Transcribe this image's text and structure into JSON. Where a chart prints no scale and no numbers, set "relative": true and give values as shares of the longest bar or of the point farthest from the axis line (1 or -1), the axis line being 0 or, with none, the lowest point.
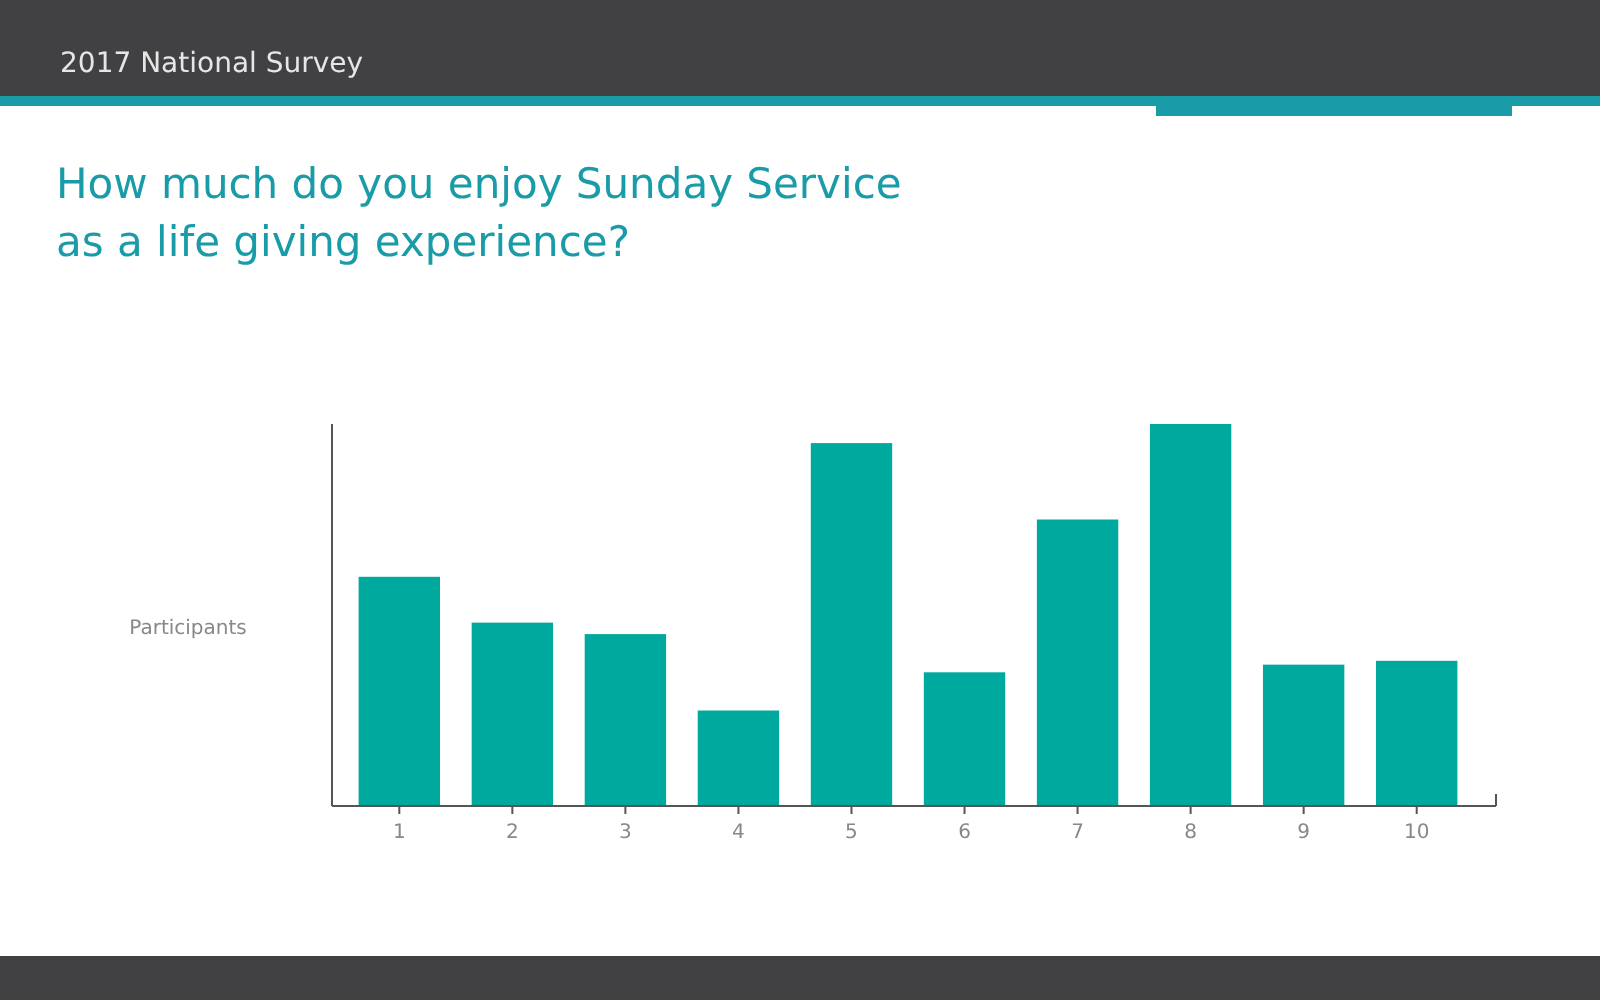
{
  "chart_data": {
    "type": "bar",
    "title": "2017 National Survey",
    "subtitle": "How much do you enjoy Sunday Service\nas a life giving experience?",
    "ylabel": "Participants",
    "relative": true,
    "categories": [
      "1",
      "2",
      "3",
      "4",
      "5",
      "6",
      "7",
      "8",
      "9",
      "10"
    ],
    "values": [
      0.6,
      0.48,
      0.45,
      0.25,
      0.95,
      0.35,
      0.75,
      1,
      0.37,
      0.38
    ],
    "color": "#00a99d"
  }
}
